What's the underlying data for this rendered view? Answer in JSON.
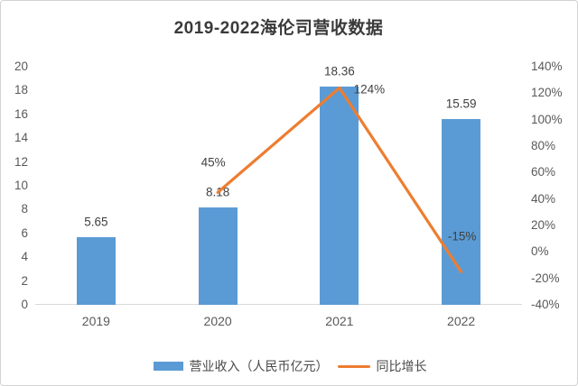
{
  "chart_data": {
    "type": "bar+line combo",
    "title": "2019-2022海伦司营收数据",
    "categories": [
      "2019",
      "2020",
      "2021",
      "2022"
    ],
    "series": [
      {
        "name": "营业收入（人民币亿元）",
        "type": "bar",
        "axis": "left",
        "color": "#5B9BD5",
        "values": [
          5.65,
          8.18,
          18.36,
          15.59
        ],
        "labels": [
          "5.65",
          "8.18",
          "18.36",
          "15.59"
        ]
      },
      {
        "name": "同比增长",
        "type": "line",
        "axis": "right",
        "color": "#ED7D31",
        "values": [
          null,
          45,
          124,
          -15
        ],
        "labels": [
          null,
          "45%",
          "124%",
          "-15%"
        ],
        "label_offsets": [
          [
            0,
            0
          ],
          [
            -5,
            -33
          ],
          [
            33,
            2
          ],
          [
            1,
            -39
          ]
        ]
      }
    ],
    "left_axis": {
      "min": 0,
      "max": 20,
      "step": 2,
      "ticks": [
        "0",
        "2",
        "4",
        "6",
        "8",
        "10",
        "12",
        "14",
        "16",
        "18",
        "20"
      ]
    },
    "right_axis": {
      "min": -40,
      "max": 140,
      "step": 20,
      "ticks": [
        "-40%",
        "-20%",
        "0%",
        "20%",
        "40%",
        "60%",
        "80%",
        "100%",
        "120%",
        "140%"
      ]
    },
    "gridlines": false,
    "legend_position": "bottom",
    "text_color": "#595959",
    "label_color": "#404040",
    "axis_line_color": "#d9d9d9"
  }
}
